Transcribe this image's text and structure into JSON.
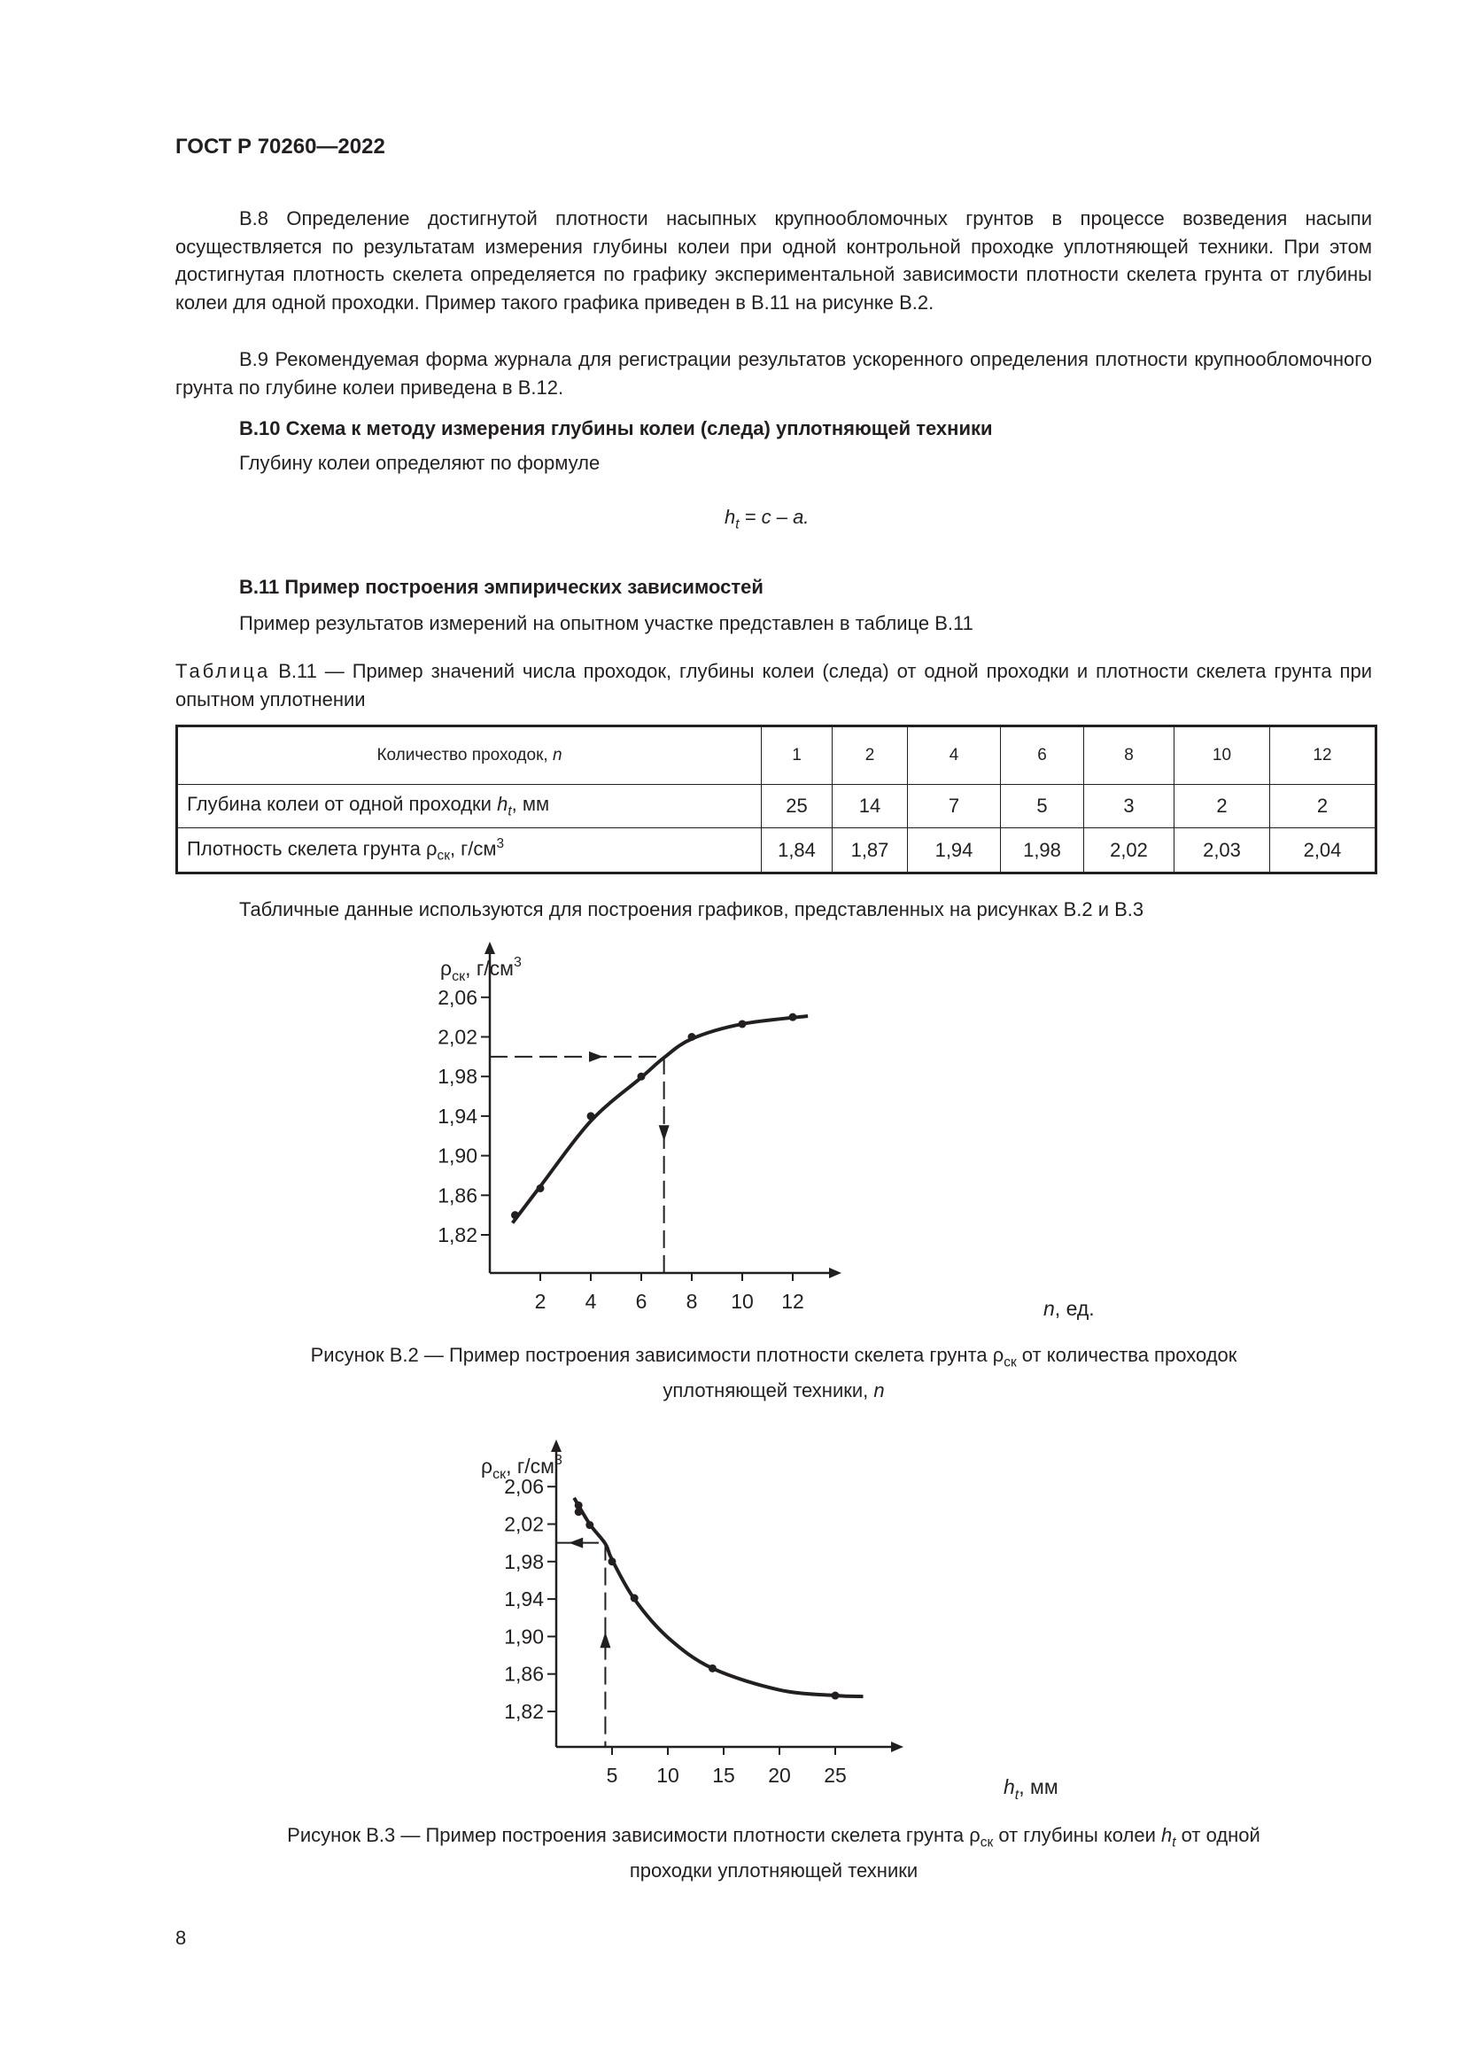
{
  "header": {
    "title": "ГОСТ Р 70260—2022"
  },
  "paragraphs": {
    "b8": "В.8 Определение достигнутой плотности насыпных крупнообломочных грунтов в процессе возведения насыпи осуществляется по результатам измерения глубины колеи при одной контрольной проходке уплотняющей техники. При этом достигнутая плотность скелета определяется по графику экспериментальной зависимости плотности скелета грунта от глубины колеи для одной проходки. Пример такого графика приведен в В.11 на рисунке В.2.",
    "b9": "В.9 Рекомендуемая форма журнала для регистрации результатов ускоренного определения плотности крупнообломочного грунта по глубине колеи приведена в В.12.",
    "b10_heading": "В.10  Схема к методу измерения глубины колеи (следа) уплотняющей техники",
    "b10_text": "Глубину колеи определяют по формуле",
    "formula": {
      "h": "h",
      "sub": "t",
      "rest": " = c – a."
    },
    "b11_heading": "В.11  Пример построения эмпирических зависимостей",
    "b11_text": "Пример результатов измерений на опытном участке представлен в таблице В.11",
    "after_table": "Табличные данные используются для построения графиков, представленных на рисунках В.2 и В.3"
  },
  "table": {
    "caption_prefix": "Таблица",
    "caption_text": " В.11 — Пример значений числа проходок, глубины колеи (следа) от одной проходки и плотности скелета грунта при опытном уплотнении",
    "header_label": "Количество проходок, ",
    "header_label_var": "n",
    "passes": [
      "1",
      "2",
      "4",
      "6",
      "8",
      "10",
      "12"
    ],
    "row1_label": "Глубина колеи от одной проходки ",
    "row1_var": "h",
    "row1_sub": "t",
    "row1_unit": ", мм",
    "depth": [
      "25",
      "14",
      "7",
      "5",
      "3",
      "2",
      "2"
    ],
    "row2_label": "Плотность скелета грунта ρ",
    "row2_sub": "ск",
    "row2_unit": ", г/см",
    "row2_sup": "3",
    "density": [
      "1,84",
      "1,87",
      "1,94",
      "1,98",
      "2,02",
      "2,03",
      "2,04"
    ]
  },
  "chart_data": [
    {
      "type": "scatter",
      "ylabel": "ρск, г/см3",
      "xlabel": "n, ед.",
      "xlim": [
        0,
        13.5
      ],
      "ylim": [
        1.78,
        2.1
      ],
      "xticks": [
        2,
        4,
        6,
        8,
        10,
        12
      ],
      "xtick_labels": [
        "2",
        "4",
        "6",
        "8",
        "10",
        "12"
      ],
      "yticks": [
        1.82,
        1.86,
        1.9,
        1.94,
        1.98,
        2.02,
        2.06
      ],
      "ytick_labels": [
        "1,82",
        "1,86",
        "1,90",
        "1,94",
        "1,98",
        "2,02",
        "2,06"
      ],
      "points": {
        "x": [
          1,
          2,
          4,
          6,
          8,
          10,
          12
        ],
        "y": [
          1.84,
          1.867,
          1.94,
          1.98,
          2.02,
          2.033,
          2.04
        ]
      },
      "fit_curve": {
        "x": [
          0.9,
          2,
          4,
          6,
          6.9,
          8,
          10,
          12.6
        ],
        "y": [
          1.832,
          1.869,
          1.935,
          1.979,
          1.999,
          2.018,
          2.033,
          2.041
        ]
      },
      "guide": {
        "x": 6.9,
        "y": 2.0
      },
      "grid": false,
      "caption_line1": "Рисунок В.2 — Пример построения зависимости плотности скелета грунта ρ",
      "caption_sub": "ск",
      "caption_rest": " от количества проходок",
      "caption_line2": "уплотняющей техники, ",
      "caption_var": "n"
    },
    {
      "type": "scatter",
      "ylabel": "ρск, г/см3",
      "xlabel": "ht, мм",
      "xlim": [
        0,
        30
      ],
      "ylim": [
        1.78,
        2.1
      ],
      "xticks": [
        5,
        10,
        15,
        20,
        25
      ],
      "xtick_labels": [
        "5",
        "10",
        "15",
        "20",
        "25"
      ],
      "yticks": [
        1.82,
        1.86,
        1.9,
        1.94,
        1.98,
        2.02,
        2.06
      ],
      "ytick_labels": [
        "1,82",
        "1,86",
        "1,90",
        "1,94",
        "1,98",
        "2,02",
        "2,06"
      ],
      "points": {
        "x": [
          25,
          14,
          7,
          5,
          3,
          2,
          2
        ],
        "y": [
          1.837,
          1.866,
          1.941,
          1.98,
          2.019,
          2.033,
          2.04
        ]
      },
      "fit_curve": {
        "x": [
          1.6,
          3,
          4.4,
          5,
          7,
          10,
          14,
          20,
          25,
          27.5
        ],
        "y": [
          2.048,
          2.02,
          1.999,
          1.982,
          1.94,
          1.899,
          1.866,
          1.843,
          1.837,
          1.836
        ]
      },
      "guide": {
        "x": 4.4,
        "y": 2.0
      },
      "grid": false,
      "caption_line1": "Рисунок В.3 — Пример построения зависимости плотности скелета грунта ρ",
      "caption_sub": "ск",
      "caption_mid": " от глубины колеи ",
      "caption_var": "h",
      "caption_var_sub": "t",
      "caption_rest": " от одной",
      "caption_line2": "проходки уплотняющей техники"
    }
  ],
  "page_number": "8"
}
